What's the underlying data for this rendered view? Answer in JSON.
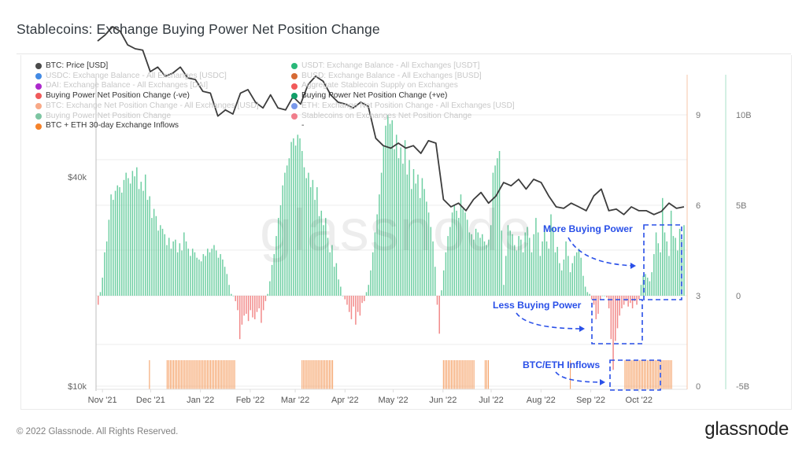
{
  "title": "Stablecoins: Exchange Buying Power Net Position Change",
  "footer": {
    "copyright": "© 2022 Glassnode. All Rights Reserved.",
    "logo": "glassnode"
  },
  "watermark": "glassnode",
  "legend": {
    "col1": [
      {
        "label": "BTC: Price [USD]",
        "color": "#4a4a4a",
        "active": true
      },
      {
        "label": "USDC: Exchange Balance - All Exchanges [USDC]",
        "color": "#2f7de1",
        "active": false
      },
      {
        "label": "DAI: Exchange Balance - All Exchanges [DAI]",
        "color": "#a312c7",
        "active": false
      },
      {
        "label": "Buying Power Net Position Change (-ve)",
        "color": "#f05a5a",
        "active": true
      },
      {
        "label": "BTC: Exchange Net Position Change - All Exchanges [USD]",
        "color": "#f7a07a",
        "active": false
      },
      {
        "label": "Buying Power Net Position Change",
        "color": "#6fbf98",
        "active": false
      },
      {
        "label": "BTC + ETH 30-day Exchange Inflows",
        "color": "#f5822a",
        "active": true
      }
    ],
    "col2": [
      {
        "label": "USDT: Exchange Balance - All Exchanges [USDT]",
        "color": "#12b06a",
        "active": false
      },
      {
        "label": "BUSD: Exchange Balance - All Exchanges [BUSD]",
        "color": "#d25a1e",
        "active": false
      },
      {
        "label": "Aggregate Stablecoin Supply on Exchanges",
        "color": "#f04848",
        "active": false
      },
      {
        "label": "Buying Power Net Position Change (+ve)",
        "color": "#129e68",
        "active": true
      },
      {
        "label": "ETH: Exchange Net Position Change - All Exchanges [USD]",
        "color": "#6a8de8",
        "active": false
      },
      {
        "label": "Stablecoins on Exchanges Net Position Change",
        "color": "#f07080",
        "active": false
      },
      {
        "label": "-",
        "color": "",
        "active": true,
        "dash": true
      }
    ]
  },
  "annotations": {
    "more": "More Buying Power",
    "less": "Less Buying Power",
    "inflows": "BTC/ETH Inflows",
    "color": "#2a50e8"
  },
  "chart_data": [
    {
      "type": "line",
      "name": "BTC: Price [USD]",
      "color": "#3c3c3c",
      "yaxis": {
        "side": "left",
        "scale": "log",
        "ticks": [
          "$10k",
          "$40k"
        ],
        "tick_values": [
          10000,
          40000
        ]
      },
      "x_start": "2021-10-28",
      "x_end": "2022-10-31",
      "points_weekly": [
        60000,
        62500,
        66000,
        64000,
        58500,
        57000,
        56500,
        49000,
        50500,
        47500,
        48500,
        50500,
        47000,
        46500,
        43000,
        42500,
        36500,
        38000,
        37000,
        42500,
        43500,
        40000,
        38500,
        42000,
        38500,
        38000,
        41500,
        39500,
        45000,
        47500,
        46000,
        42000,
        40000,
        39500,
        38500,
        40000,
        39000,
        31500,
        30000,
        29500,
        30500,
        29500,
        30000,
        28500,
        31000,
        30500,
        21000,
        20000,
        20500,
        19500,
        21000,
        22000,
        20500,
        21500,
        23500,
        23000,
        24000,
        22500,
        24000,
        23500,
        21500,
        20000,
        19800,
        20500,
        20000,
        19500,
        21500,
        22500,
        19500,
        19700,
        19000,
        20000,
        19500,
        19500,
        19000,
        19400,
        20500,
        19800,
        20000
      ]
    },
    {
      "type": "bar",
      "name": "Buying Power Net Position Change (+ve / -ve)",
      "positive_color": "#6fcfa3",
      "negative_color": "#f28a8a",
      "unit": "USD",
      "yaxis": {
        "side": "right-outer",
        "ticks": [
          "-5B",
          "0",
          "5B",
          "10B"
        ],
        "tick_values": [
          -5000000000.0,
          0,
          5000000000.0,
          10000000000.0
        ],
        "range": [
          -5000000000.0,
          12500000000.0
        ]
      },
      "values_B": [
        -0.5,
        0.2,
        1.0,
        2.4,
        3.0,
        4.2,
        5.6,
        5.3,
        5.8,
        6.1,
        6.0,
        5.7,
        6.4,
        6.8,
        6.5,
        6.2,
        6.9,
        6.6,
        7.1,
        5.9,
        6.3,
        5.8,
        6.7,
        5.3,
        5.5,
        4.3,
        4.8,
        4.4,
        3.6,
        3.9,
        3.7,
        3.4,
        2.8,
        3.2,
        2.6,
        3.0,
        3.1,
        2.4,
        2.9,
        2.5,
        3.5,
        3.0,
        2.6,
        2.2,
        2.6,
        2.4,
        2.1,
        2.0,
        1.9,
        2.3,
        2.2,
        2.6,
        2.4,
        2.6,
        2.8,
        2.5,
        2.1,
        2.3,
        2.0,
        1.6,
        1.2,
        0.6,
        0.1,
        0.0,
        -0.3,
        -0.8,
        -2.4,
        -1.6,
        -1.1,
        -1.0,
        -1.4,
        -0.8,
        -1.2,
        -1.3,
        -0.9,
        -0.7,
        -1.5,
        -0.8,
        -0.3,
        0.1,
        0.8,
        1.7,
        2.3,
        3.3,
        4.3,
        5.0,
        6.1,
        6.8,
        7.2,
        7.6,
        8.5,
        8.7,
        8.3,
        8.9,
        8.7,
        8.0,
        7.1,
        6.5,
        6.8,
        6.0,
        6.4,
        5.3,
        6.0,
        4.4,
        4.7,
        3.9,
        4.3,
        3.2,
        2.4,
        2.8,
        1.6,
        1.8,
        0.9,
        0.5,
        0.0,
        -0.2,
        -0.5,
        -0.9,
        -1.3,
        -0.6,
        -1.6,
        -0.9,
        -1.1,
        -0.4,
        -0.3,
        0.2,
        0.6,
        1.4,
        2.4,
        3.5,
        4.5,
        5.6,
        6.8,
        8.3,
        9.4,
        10.0,
        9.5,
        9.7,
        8.1,
        8.9,
        7.6,
        8.2,
        7.3,
        8.6,
        6.7,
        7.5,
        5.9,
        7.0,
        6.2,
        6.7,
        5.4,
        6.5,
        5.9,
        5.2,
        4.6,
        3.8,
        3.0,
        1.6,
        -0.5,
        -2.1,
        0.3,
        1.4,
        2.4,
        3.3,
        3.8,
        4.6,
        5.0,
        4.7,
        4.3,
        5.6,
        4.8,
        4.6,
        4.2,
        3.5,
        3.4,
        3.1,
        3.7,
        3.5,
        3.2,
        3.4,
        3.0,
        2.8,
        3.1,
        3.9,
        6.8,
        7.2,
        7.6,
        8.0,
        3.6,
        0.6,
        2.2,
        3.9,
        3.6,
        3.4,
        2.8,
        2.5,
        3.3,
        3.1,
        2.4,
        3.5,
        3.8,
        3.2,
        2.4,
        3.4,
        4.3,
        3.5,
        2.2,
        3.0,
        3.9,
        3.0,
        2.6,
        4.5,
        3.8,
        2.4,
        2.7,
        1.8,
        1.4,
        2.0,
        3.0,
        2.2,
        1.3,
        1.8,
        2.2,
        2.4,
        2.6,
        2.1,
        1.1,
        0.5,
        0.2,
        0.1,
        -0.2,
        -0.5,
        -1.3,
        -1.0,
        -0.2,
        0.0,
        0.0,
        -0.1,
        -0.7,
        -2.4,
        -4.1,
        -2.5,
        -1.8,
        -1.1,
        -0.7,
        -0.5,
        -0.3,
        -0.6,
        -0.4,
        -0.7,
        -0.3,
        -0.5,
        -0.2,
        0.6,
        1.1,
        1.2,
        1.0,
        0.8,
        1.3,
        2.3,
        3.5,
        2.9,
        2.4,
        5.4,
        3.5,
        3.0,
        2.2,
        4.7,
        3.3,
        3.2,
        2.5,
        3.7,
        3.1,
        3.9
      ],
      "x_start": "2021-10-28",
      "x_end": "2022-10-31"
    },
    {
      "type": "bar",
      "name": "BTC + ETH 30-day Exchange Inflows",
      "color": "#f5a36a",
      "yaxis": {
        "side": "right-inner",
        "ticks": [
          "0",
          "3",
          "6",
          "9"
        ],
        "tick_values": [
          0,
          3,
          6,
          9
        ]
      },
      "active_periods": [
        {
          "start": "2021-11-30",
          "end": "2021-11-30",
          "value": 0.9
        },
        {
          "start": "2021-12-11",
          "end": "2022-01-22",
          "value": 0.9
        },
        {
          "start": "2022-03-05",
          "end": "2022-03-24",
          "value": 0.9
        },
        {
          "start": "2022-06-01",
          "end": "2022-06-20",
          "value": 0.9
        },
        {
          "start": "2022-06-27",
          "end": "2022-06-29",
          "value": 0.9
        },
        {
          "start": "2022-08-19",
          "end": "2022-08-19",
          "value": 0.9
        },
        {
          "start": "2022-09-22",
          "end": "2022-10-21",
          "value": 0.9
        }
      ]
    }
  ],
  "x_axis": {
    "ticks": [
      "Nov '21",
      "Dec '21",
      "Jan '22",
      "Feb '22",
      "Mar '22",
      "Apr '22",
      "May '22",
      "Jun '22",
      "Jul '22",
      "Aug '22",
      "Sep '22",
      "Oct '22"
    ],
    "tick_dates": [
      "2021-11-01",
      "2021-12-01",
      "2022-01-01",
      "2022-02-01",
      "2022-03-01",
      "2022-04-01",
      "2022-05-01",
      "2022-06-01",
      "2022-07-01",
      "2022-08-01",
      "2022-09-01",
      "2022-10-01"
    ]
  },
  "grid": true
}
